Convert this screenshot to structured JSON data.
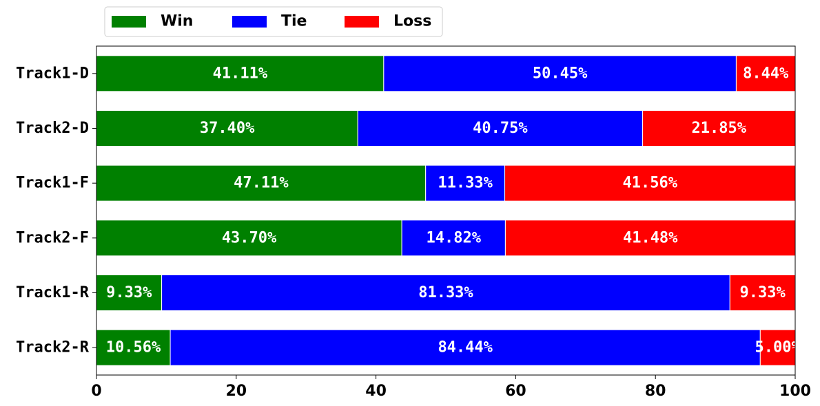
{
  "chart_data": {
    "type": "bar",
    "orientation": "horizontal",
    "stacked": true,
    "categories": [
      "Track1-D",
      "Track2-D",
      "Track1-F",
      "Track2-F",
      "Track1-R",
      "Track2-R"
    ],
    "series": [
      {
        "name": "Win",
        "color": "#008000",
        "values": [
          41.11,
          37.4,
          47.11,
          43.7,
          9.33,
          10.56
        ],
        "labels": [
          "41.11%",
          "37.40%",
          "47.11%",
          "43.70%",
          "9.33%",
          "10.56%"
        ]
      },
      {
        "name": "Tie",
        "color": "#0000ff",
        "values": [
          50.45,
          40.75,
          11.33,
          14.82,
          81.33,
          84.44
        ],
        "labels": [
          "50.45%",
          "40.75%",
          "11.33%",
          "14.82%",
          "81.33%",
          "84.44%"
        ]
      },
      {
        "name": "Loss",
        "color": "#ff0000",
        "values": [
          8.44,
          21.85,
          41.56,
          41.48,
          9.33,
          5.0
        ],
        "labels": [
          "8.44%",
          "21.85%",
          "41.56%",
          "41.48%",
          "9.33%",
          "5.00%"
        ]
      }
    ],
    "xlim": [
      0,
      100
    ],
    "xticks": [
      "0",
      "20",
      "40",
      "60",
      "80",
      "100"
    ],
    "grid": false,
    "legend_position": "top-left, outside plot"
  }
}
